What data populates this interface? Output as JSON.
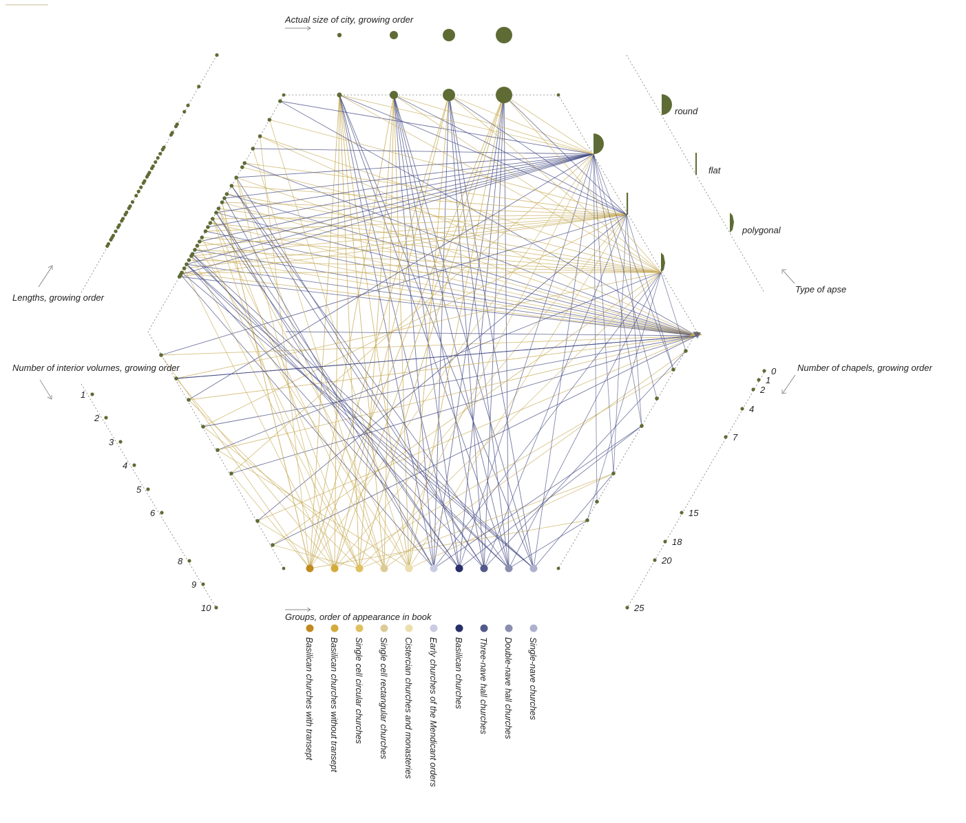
{
  "colors": {
    "node": "#5e6b34",
    "gold": "#c8ad5a",
    "navy": "#3f4680",
    "frame": "#777777"
  },
  "axes": {
    "city_size": "Actual size of city, growing order",
    "lengths": "Lengths, growing order",
    "interior": "Number of interior volumes, growing order",
    "chapels": "Number of chapels, growing order",
    "apse": "Type of apse",
    "groups": "Groups, order of appearance in book"
  },
  "apse_types": [
    "round",
    "flat",
    "polygonal"
  ],
  "interior_volumes": [
    "1",
    "2",
    "3",
    "4",
    "5",
    "6",
    "8",
    "9",
    "10"
  ],
  "chapels": [
    "0",
    "1",
    "2",
    "4",
    "7",
    "15",
    "18",
    "20",
    "25"
  ],
  "groups": [
    {
      "label": "Basilican churches with transept",
      "color": "#c08a1e"
    },
    {
      "label": "Basilican churches without transept",
      "color": "#d3ab3d"
    },
    {
      "label": "Single cell circular churches",
      "color": "#e0c061"
    },
    {
      "label": "Single cell rectangular churches",
      "color": "#dccb97"
    },
    {
      "label": "Cistercian churches and monasteries",
      "color": "#ecdfae"
    },
    {
      "label": "Early churches of the Mendicant orders",
      "color": "#c9cbe3"
    },
    {
      "label": "Basilican churches",
      "color": "#27306a"
    },
    {
      "label": "Three-nave hall churches",
      "color": "#525a8c"
    },
    {
      "label": "Double-nave hall churches",
      "color": "#8a8fb0"
    },
    {
      "label": "Single-nave churches",
      "color": "#aeb1cc"
    }
  ]
}
